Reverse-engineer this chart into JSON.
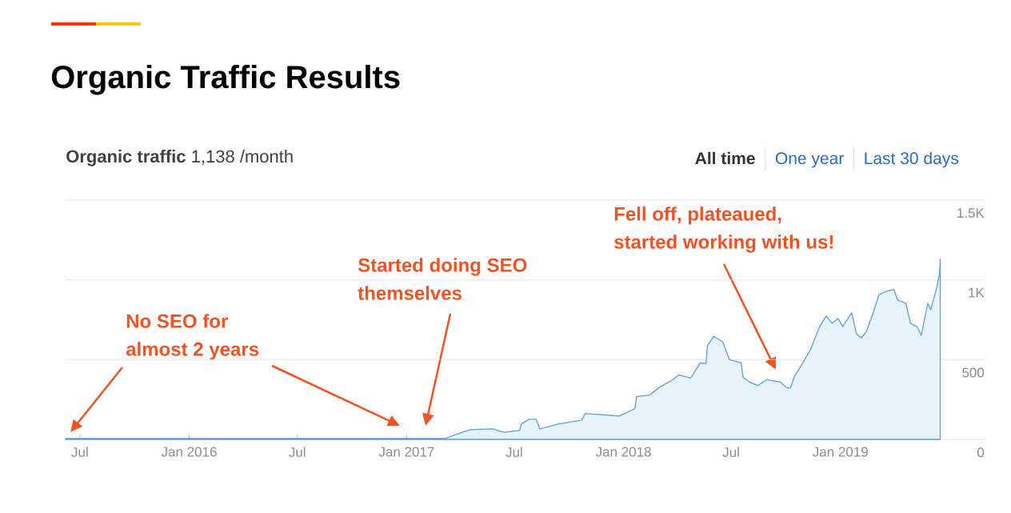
{
  "chart_data": {
    "type": "area",
    "title": "Organic Traffic Results",
    "subtitle": "**Organic traffic** 1,138 /month",
    "x": [
      "2015-06-07",
      "2017-03-06",
      "2017-03-28",
      "2017-04-18",
      "2017-05-25",
      "2017-06-14",
      "2017-07-10",
      "2017-07-13",
      "2017-07-26",
      "2017-08-07",
      "2017-08-13",
      "2017-09-13",
      "2017-10-23",
      "2017-10-28",
      "2017-12-25",
      "2018-01-20",
      "2018-01-23",
      "2018-02-14",
      "2018-03-03",
      "2018-03-25",
      "2018-04-04",
      "2018-04-24",
      "2018-05-10",
      "2018-05-20",
      "2018-05-22",
      "2018-06-02",
      "2018-06-17",
      "2018-06-28",
      "2018-07-18",
      "2018-07-21",
      "2018-08-04",
      "2018-08-15",
      "2018-08-30",
      "2018-09-22",
      "2018-10-03",
      "2018-10-09",
      "2018-10-15",
      "2018-10-28",
      "2018-11-12",
      "2018-11-27",
      "2018-12-08",
      "2018-12-18",
      "2018-12-28",
      "2019-01-05",
      "2019-01-20",
      "2019-01-28",
      "2019-02-05",
      "2019-02-14",
      "2019-02-25",
      "2019-03-07",
      "2019-03-20",
      "2019-04-01",
      "2019-04-07",
      "2019-04-21",
      "2019-04-29",
      "2019-05-10",
      "2019-05-17",
      "2019-05-28",
      "2019-06-02",
      "2019-06-12",
      "2019-06-17",
      "2019-06-18"
    ],
    "series": [
      {
        "color": "#5b9fd8",
        "values": [
          5,
          5,
          35,
          61,
          66,
          45,
          56,
          96,
          126,
          126,
          66,
          96,
          121,
          162,
          146,
          192,
          268,
          278,
          328,
          374,
          404,
          384,
          480,
          475,
          586,
          646,
          611,
          500,
          480,
          389,
          354,
          338,
          374,
          359,
          323,
          323,
          389,
          470,
          566,
          707,
          773,
          727,
          758,
          707,
          793,
          662,
          636,
          677,
          793,
          909,
          929,
          939,
          874,
          854,
          727,
          707,
          652,
          854,
          813,
          949,
          1045,
          1131
        ]
      }
    ],
    "xlim": [
      "2015-06-07",
      "2019-09-02"
    ],
    "xticks": [
      {
        "value": "2015-07-01",
        "label": "Jul"
      },
      {
        "value": "2016-01-01",
        "label": "Jan 2016"
      },
      {
        "value": "2016-07-01",
        "label": "Jul"
      },
      {
        "value": "2017-01-01",
        "label": "Jan 2017"
      },
      {
        "value": "2017-07-01",
        "label": "Jul"
      },
      {
        "value": "2018-01-01",
        "label": "Jan 2018"
      },
      {
        "value": "2018-07-01",
        "label": "Jul"
      },
      {
        "value": "2019-01-01",
        "label": "Jan 2019"
      }
    ],
    "ylim": [
      0,
      1500
    ],
    "yticks": [
      0,
      500,
      {
        "value": 1000,
        "label": "1K"
      },
      {
        "value": 1500,
        "label": "1.5K"
      }
    ],
    "grid": "y",
    "annotations": [
      "No SEO for almost 2 years",
      "Started doing SEO themselves",
      "Fell off, plateaued, started working with us!",
      "All time",
      "One year",
      "Last 30 days"
    ]
  }
}
